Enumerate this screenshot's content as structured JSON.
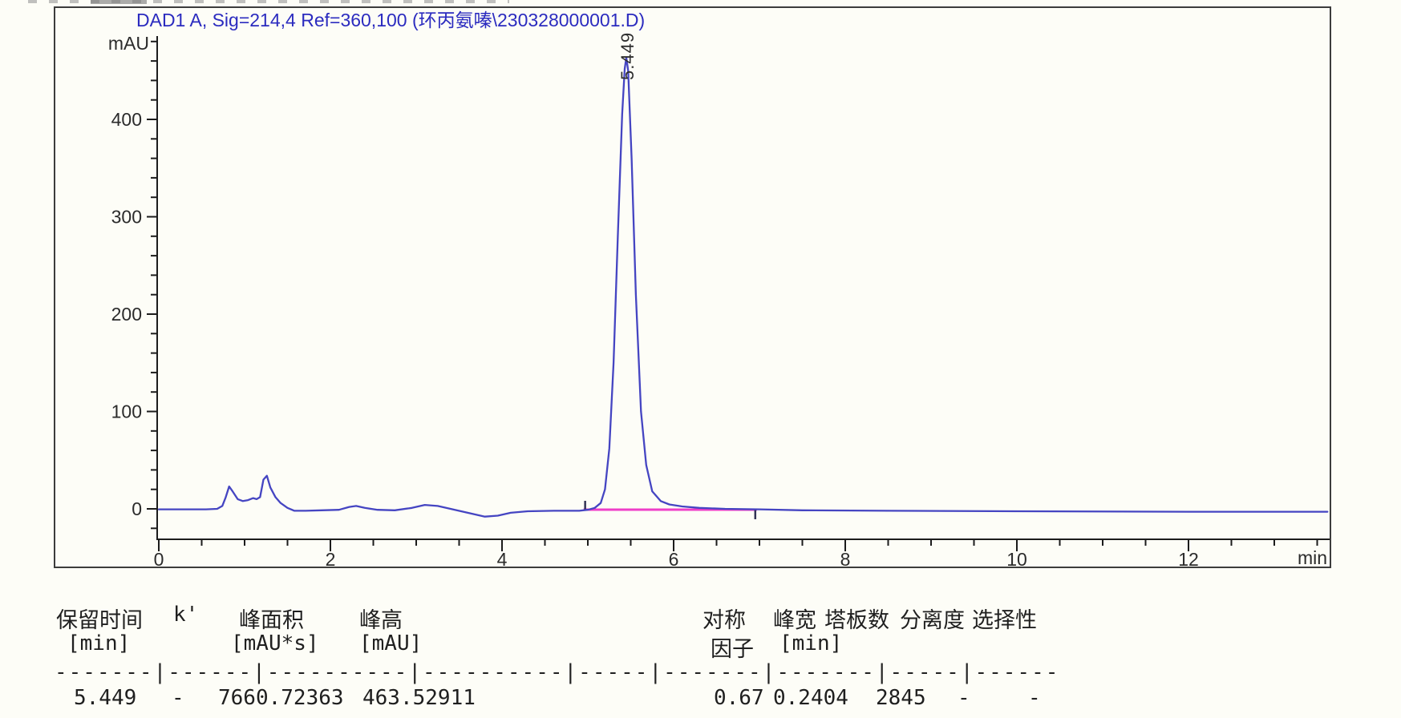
{
  "report": {
    "signal_title": "DAD1 A, Sig=214,4 Ref=360,100 (环丙氨嗪\\230328000001.D)"
  },
  "chart_data": {
    "type": "line",
    "title": "DAD1 A, Sig=214,4 Ref=360,100 (环丙氨嗪\\230328000001.D)",
    "xlabel": "min",
    "ylabel": "mAU",
    "xlim": [
      0,
      13.65
    ],
    "ylim": [
      -31,
      500
    ],
    "x_major_ticks": [
      0,
      2,
      4,
      6,
      8,
      10,
      12
    ],
    "x_minor_step": 0.5,
    "x_minor_range": [
      0,
      13.5
    ],
    "y_major_ticks": [
      0,
      100,
      200,
      300,
      400
    ],
    "y_minor_step": 20,
    "y_minor_range": [
      -20,
      480
    ],
    "grid": false,
    "legend": "none",
    "series": [
      {
        "name": "DAD1 A, Sig=214,4 Ref=360,100",
        "color": "#4545c2",
        "points": [
          [
            0,
            -0.5
          ],
          [
            0.55,
            -0.5
          ],
          [
            0.68,
            0
          ],
          [
            0.74,
            3
          ],
          [
            0.78,
            12
          ],
          [
            0.82,
            23
          ],
          [
            0.86,
            18
          ],
          [
            0.92,
            10
          ],
          [
            0.98,
            8
          ],
          [
            1.04,
            9
          ],
          [
            1.1,
            11
          ],
          [
            1.14,
            10
          ],
          [
            1.18,
            12
          ],
          [
            1.22,
            30
          ],
          [
            1.26,
            34
          ],
          [
            1.3,
            22
          ],
          [
            1.36,
            12
          ],
          [
            1.42,
            6
          ],
          [
            1.5,
            1
          ],
          [
            1.58,
            -2
          ],
          [
            1.7,
            -2
          ],
          [
            1.9,
            -1.5
          ],
          [
            2.1,
            -1
          ],
          [
            2.22,
            2
          ],
          [
            2.3,
            3
          ],
          [
            2.4,
            1
          ],
          [
            2.55,
            -1
          ],
          [
            2.75,
            -1.5
          ],
          [
            2.95,
            1
          ],
          [
            3.1,
            4
          ],
          [
            3.25,
            3
          ],
          [
            3.4,
            0
          ],
          [
            3.6,
            -4
          ],
          [
            3.8,
            -8
          ],
          [
            3.95,
            -7
          ],
          [
            4.1,
            -4
          ],
          [
            4.3,
            -2.5
          ],
          [
            4.6,
            -2
          ],
          [
            4.9,
            -2
          ],
          [
            5.0,
            -1
          ],
          [
            5.08,
            1
          ],
          [
            5.15,
            6
          ],
          [
            5.2,
            20
          ],
          [
            5.25,
            62
          ],
          [
            5.3,
            150
          ],
          [
            5.35,
            280
          ],
          [
            5.4,
            405
          ],
          [
            5.43,
            452
          ],
          [
            5.449,
            463.5
          ],
          [
            5.47,
            450
          ],
          [
            5.51,
            360
          ],
          [
            5.56,
            220
          ],
          [
            5.62,
            100
          ],
          [
            5.68,
            45
          ],
          [
            5.75,
            18
          ],
          [
            5.85,
            8
          ],
          [
            5.95,
            4.5
          ],
          [
            6.1,
            2.5
          ],
          [
            6.3,
            1
          ],
          [
            6.6,
            0
          ],
          [
            7.0,
            -0.5
          ],
          [
            7.5,
            -1.5
          ],
          [
            8.5,
            -2
          ],
          [
            10.0,
            -2.5
          ],
          [
            12.0,
            -3
          ],
          [
            13.62,
            -3
          ]
        ]
      }
    ],
    "integration": {
      "baseline_start": 4.95,
      "baseline_end": 6.97,
      "baseline_mAU": -0.8,
      "color": "#ef3fc8"
    },
    "peak_annotations": [
      {
        "x": 5.449,
        "label": "5.449"
      }
    ]
  },
  "table": {
    "columns": [
      {
        "header": "保留时间",
        "unit": "[min]",
        "value": "5.449"
      },
      {
        "header": "k'",
        "unit": "",
        "value": "-"
      },
      {
        "header": "峰面积",
        "unit": "[mAU*s]",
        "value": "7660.72363"
      },
      {
        "header": "峰高",
        "unit": "[mAU]",
        "value": "463.52911"
      },
      {
        "header": "对称",
        "unit": "因子",
        "value": "0.67"
      },
      {
        "header": "峰宽",
        "unit": "[min]",
        "value": "0.2404"
      },
      {
        "header": "塔板数",
        "unit": "",
        "value": "2845"
      },
      {
        "header": "分离度",
        "unit": "",
        "value": "-"
      },
      {
        "header": "选择性",
        "unit": "",
        "value": "-"
      }
    ],
    "separator": "-------|------|----------|----------|-----|-------|-------|-----|------"
  }
}
